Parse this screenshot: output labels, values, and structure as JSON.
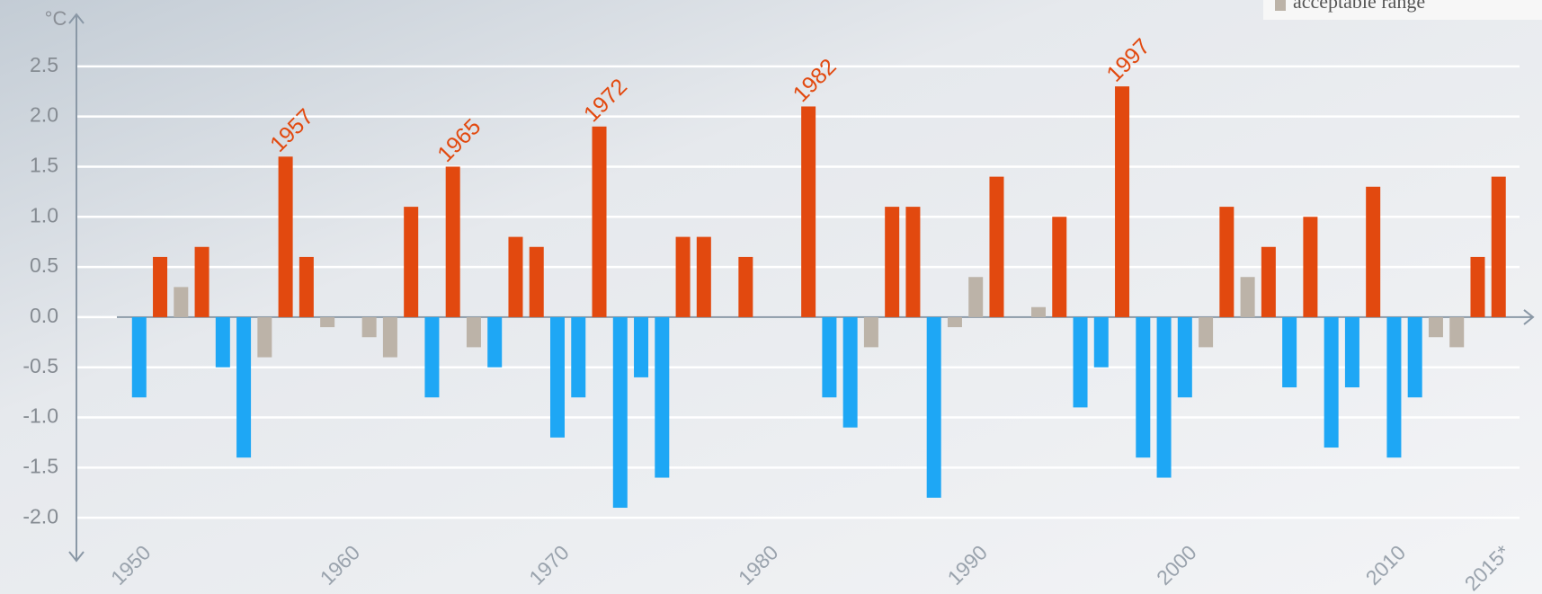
{
  "chart_data": {
    "type": "bar",
    "y_axis_label": "°C",
    "legend_note": "acceptable range",
    "x": [
      1950,
      1951,
      1952,
      1953,
      1954,
      1955,
      1956,
      1957,
      1958,
      1959,
      1960,
      1961,
      1962,
      1963,
      1964,
      1965,
      1966,
      1967,
      1968,
      1969,
      1970,
      1971,
      1972,
      1973,
      1974,
      1975,
      1976,
      1977,
      1978,
      1979,
      1980,
      1981,
      1982,
      1983,
      1984,
      1985,
      1986,
      1987,
      1988,
      1989,
      1990,
      1991,
      1992,
      1993,
      1994,
      1995,
      1996,
      1997,
      1998,
      1999,
      2000,
      2001,
      2002,
      2003,
      2004,
      2005,
      2006,
      2007,
      2008,
      2009,
      2010,
      2011,
      2012,
      2013,
      2014,
      2015
    ],
    "values": [
      -0.8,
      0.6,
      0.3,
      0.7,
      -0.5,
      -1.4,
      -0.4,
      1.6,
      0.6,
      -0.1,
      0.0,
      -0.2,
      -0.4,
      1.1,
      -0.8,
      1.5,
      -0.3,
      -0.5,
      0.8,
      0.7,
      -1.2,
      -0.8,
      1.9,
      -1.9,
      -0.6,
      -1.6,
      0.8,
      0.8,
      0.0,
      0.6,
      0.0,
      0.0,
      2.1,
      -0.8,
      -1.1,
      -0.3,
      1.1,
      1.1,
      -1.8,
      -0.1,
      0.4,
      1.4,
      0.0,
      0.1,
      1.0,
      -0.9,
      -0.5,
      2.3,
      -1.4,
      -1.6,
      -0.8,
      -0.3,
      1.1,
      0.4,
      0.7,
      -0.7,
      1.0,
      -1.3,
      -0.7,
      1.3,
      -1.4,
      -0.8,
      -0.2,
      -0.3,
      0.6,
      1.4
    ],
    "colors": [
      "#1ea7f5",
      "#e2490f",
      "#bcb3a8",
      "#e2490f",
      "#1ea7f5",
      "#1ea7f5",
      "#bcb3a8",
      "#e2490f",
      "#e2490f",
      "#bcb3a8",
      "#bcb3a8",
      "#bcb3a8",
      "#bcb3a8",
      "#e2490f",
      "#1ea7f5",
      "#e2490f",
      "#bcb3a8",
      "#1ea7f5",
      "#e2490f",
      "#e2490f",
      "#1ea7f5",
      "#1ea7f5",
      "#e2490f",
      "#1ea7f5",
      "#1ea7f5",
      "#1ea7f5",
      "#e2490f",
      "#e2490f",
      "#bcb3a8",
      "#e2490f",
      "#bcb3a8",
      "#bcb3a8",
      "#e2490f",
      "#1ea7f5",
      "#1ea7f5",
      "#bcb3a8",
      "#e2490f",
      "#e2490f",
      "#1ea7f5",
      "#bcb3a8",
      "#bcb3a8",
      "#e2490f",
      "#bcb3a8",
      "#bcb3a8",
      "#e2490f",
      "#1ea7f5",
      "#1ea7f5",
      "#e2490f",
      "#1ea7f5",
      "#1ea7f5",
      "#1ea7f5",
      "#bcb3a8",
      "#e2490f",
      "#bcb3a8",
      "#e2490f",
      "#1ea7f5",
      "#e2490f",
      "#1ea7f5",
      "#1ea7f5",
      "#e2490f",
      "#1ea7f5",
      "#1ea7f5",
      "#bcb3a8",
      "#bcb3a8",
      "#e2490f",
      "#e2490f"
    ],
    "xlim": [
      1947,
      2016
    ],
    "xticks": [
      1950,
      1960,
      1970,
      1980,
      1990,
      2000,
      2010,
      {
        "value": 2015,
        "label": "2015*"
      }
    ],
    "ylim": [
      -2.5,
      3.0
    ],
    "yticks": [
      {
        "value": 2.5,
        "label": "2.5"
      },
      {
        "value": 2,
        "label": "2.0"
      },
      {
        "value": 1.5,
        "label": "1.5"
      },
      {
        "value": 1,
        "label": "1.0"
      },
      {
        "value": 0.5,
        "label": "0.5"
      },
      {
        "value": 0,
        "label": "0.0"
      },
      {
        "value": -0.5,
        "label": "-0.5"
      },
      {
        "value": -1,
        "label": "-1.0"
      },
      {
        "value": -1.5,
        "label": "-1.5"
      },
      {
        "value": -2,
        "label": "-2.0"
      }
    ],
    "grid": true,
    "annotations": [
      {
        "label": "1957",
        "x": 1957
      },
      {
        "label": "1965",
        "x": 1965
      },
      {
        "label": "1972",
        "x": 1972
      },
      {
        "label": "1982",
        "x": 1982
      },
      {
        "label": "1997",
        "x": 1997
      }
    ]
  }
}
